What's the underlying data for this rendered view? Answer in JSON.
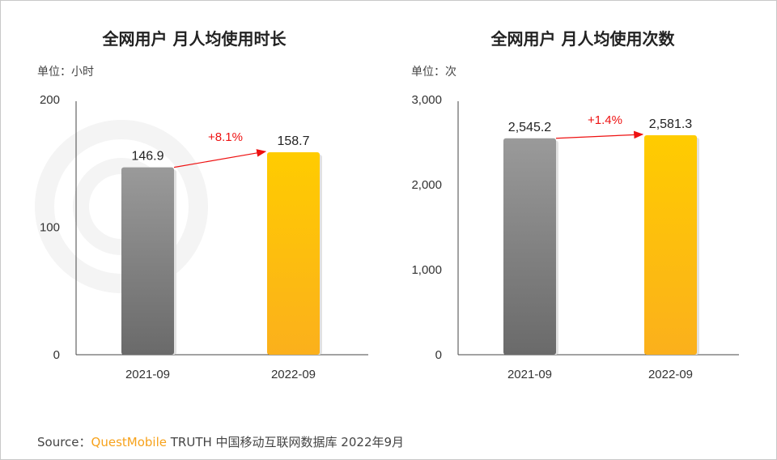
{
  "watermark": "QUESTMOBILE",
  "source": {
    "prefix": "Source：",
    "brand": "QuestMobile",
    "rest": "TRUTH 中国移动互联网数据库 2022年9月"
  },
  "colors": {
    "bar_2021": "#808080",
    "bar_2022": "#ffc800",
    "arrow": "#ee1111"
  },
  "chart_data": [
    {
      "type": "bar",
      "title": "全网用户 月人均使用时长",
      "unit_label": "单位：小时",
      "categories": [
        "2021-09",
        "2022-09"
      ],
      "values": [
        146.9,
        158.7
      ],
      "data_labels": [
        "146.9",
        "158.7"
      ],
      "growth_label": "+8.1%",
      "ylim": [
        0,
        200
      ],
      "yticks": [
        0,
        100,
        200
      ],
      "ytick_labels": [
        "0",
        "100",
        "200"
      ],
      "grid": false
    },
    {
      "type": "bar",
      "title": "全网用户 月人均使用次数",
      "unit_label": "单位：次",
      "categories": [
        "2021-09",
        "2022-09"
      ],
      "values": [
        2545.2,
        2581.3
      ],
      "data_labels": [
        "2,545.2",
        "2,581.3"
      ],
      "growth_label": "+1.4%",
      "ylim": [
        0,
        3000
      ],
      "yticks": [
        0,
        1000,
        2000,
        3000
      ],
      "ytick_labels": [
        "0",
        "1,000",
        "2,000",
        "3,000"
      ],
      "grid": false
    }
  ]
}
